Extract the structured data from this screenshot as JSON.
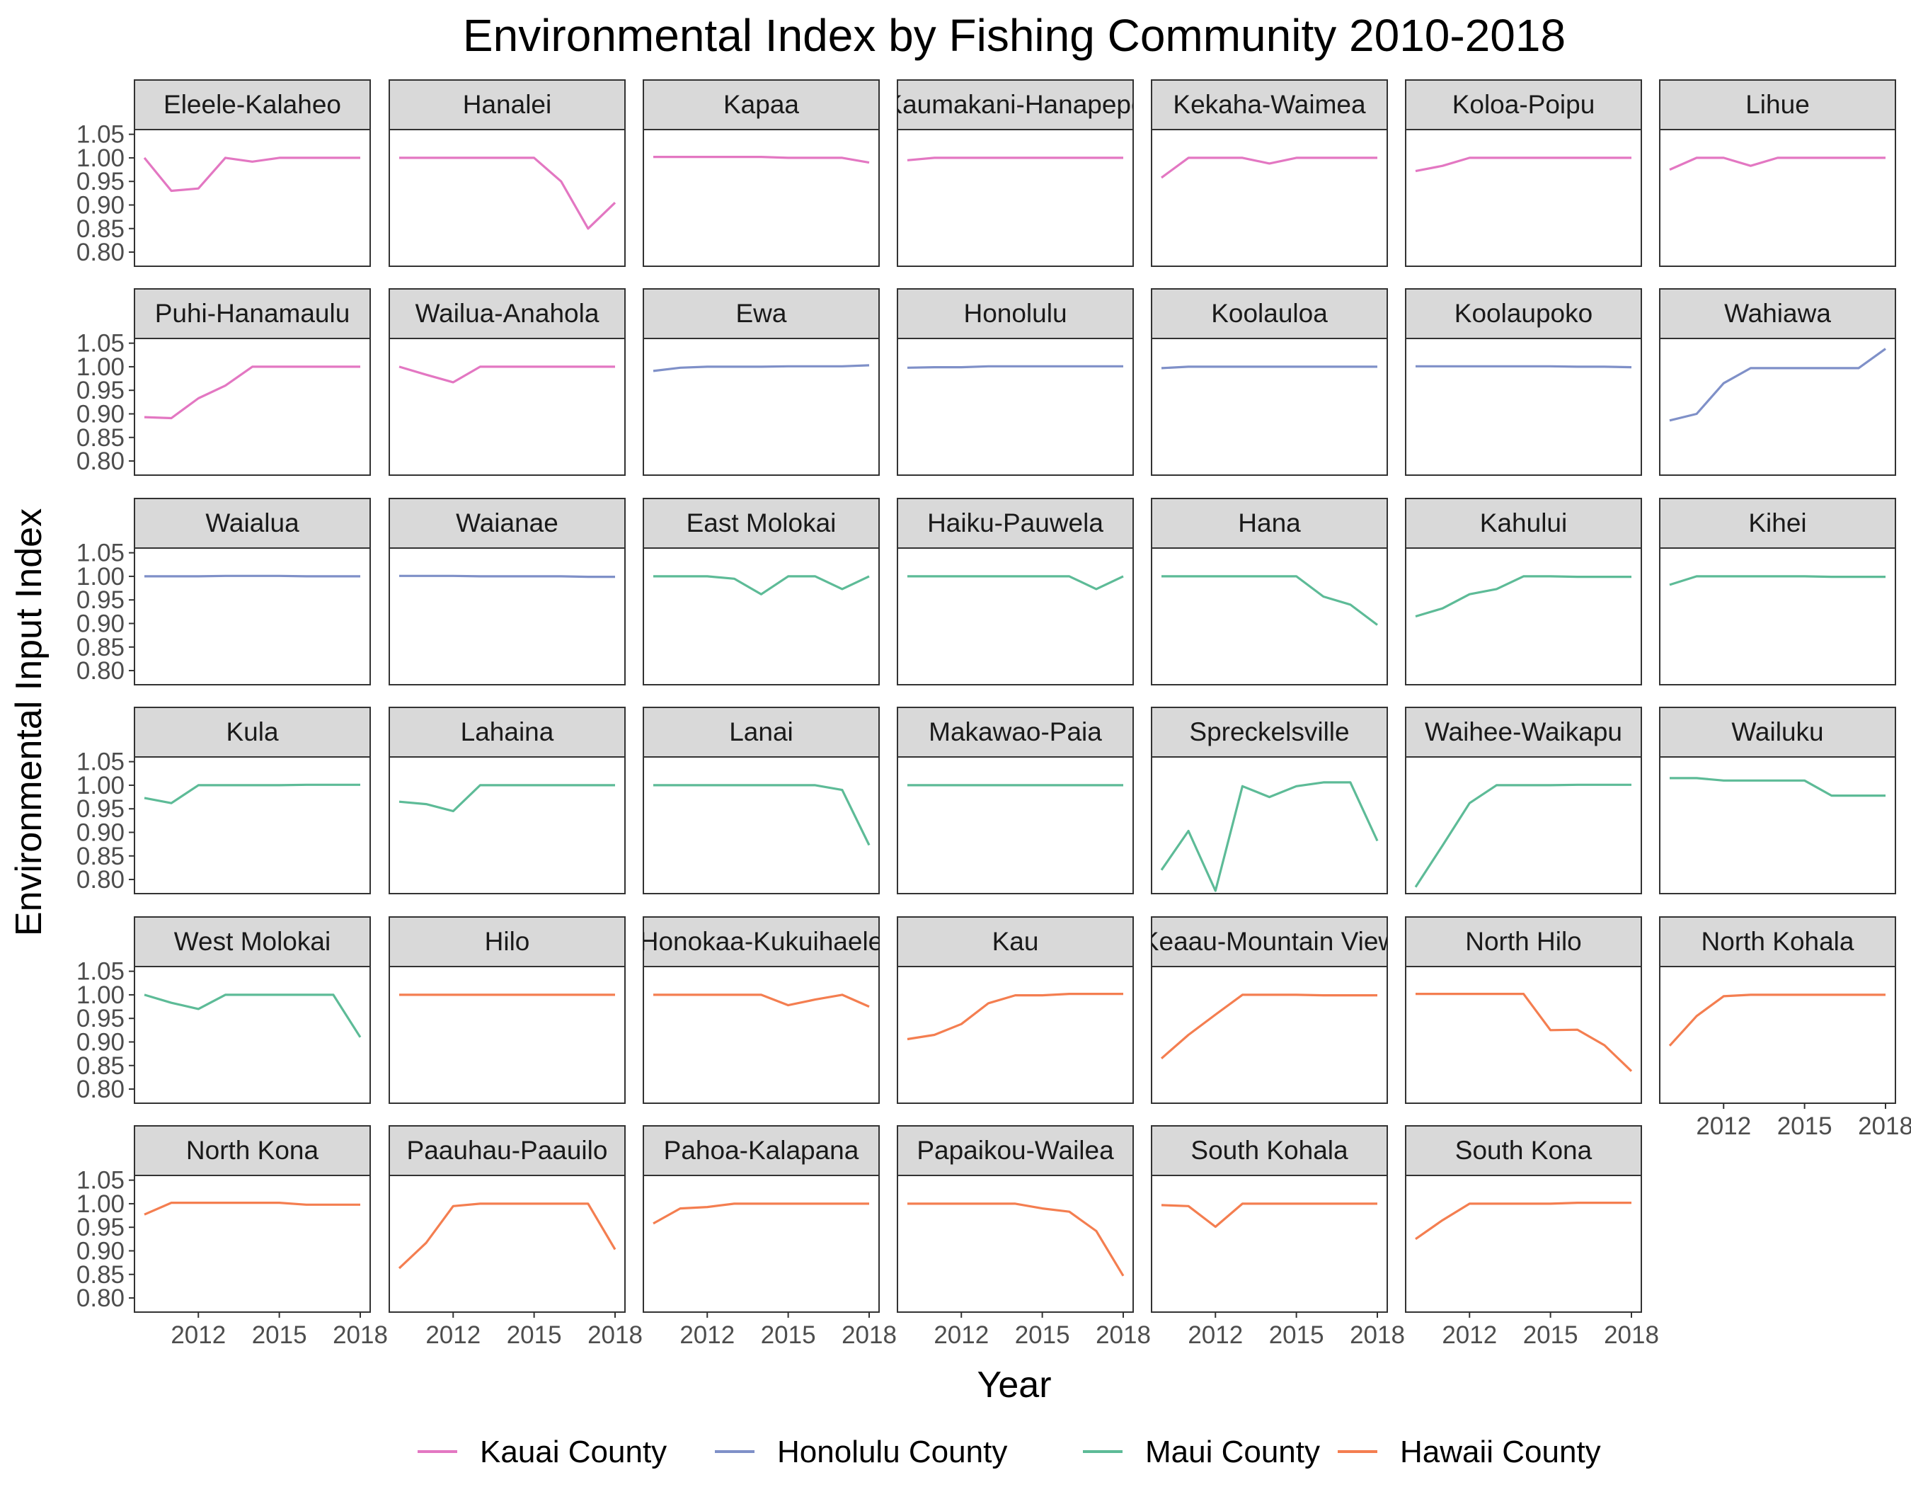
{
  "chart_data": {
    "type": "line",
    "title": "Environmental Index by Fishing Community 2010-2018",
    "xlabel": "Year",
    "ylabel": "Environmental Input Index",
    "xlim": [
      2010,
      2018
    ],
    "ylim": [
      0.77,
      1.06
    ],
    "y_ticks": [
      0.8,
      0.85,
      0.9,
      0.95,
      1.0,
      1.05
    ],
    "y_tick_labels": [
      "0.80",
      "0.85",
      "0.90",
      "0.95",
      "1.00",
      "1.05"
    ],
    "x_ticks": [
      2012,
      2015,
      2018
    ],
    "x_tick_labels": [
      "2012",
      "2015",
      "2018"
    ],
    "grid": false,
    "facet_layout": {
      "rows": 6,
      "cols": 7
    },
    "legend": {
      "position": "bottom",
      "entries": [
        {
          "name": "Kauai County",
          "color": "#E377C2"
        },
        {
          "name": "Honolulu County",
          "color": "#7F90C8"
        },
        {
          "name": "Maui County",
          "color": "#5DBB97"
        },
        {
          "name": "Hawaii County",
          "color": "#F47E50"
        }
      ]
    },
    "x": [
      2010,
      2011,
      2012,
      2013,
      2014,
      2015,
      2016,
      2017,
      2018
    ],
    "series": [
      {
        "name": "Eleele-Kalaheo",
        "county": "Kauai County",
        "values": [
          1.0,
          0.93,
          0.935,
          1.0,
          0.992,
          1.0,
          1.0,
          1.0,
          1.0
        ]
      },
      {
        "name": "Hanalei",
        "county": "Kauai County",
        "values": [
          1.0,
          1.0,
          1.0,
          1.0,
          1.0,
          1.0,
          0.95,
          0.85,
          0.905
        ]
      },
      {
        "name": "Kapaa",
        "county": "Kauai County",
        "values": [
          1.002,
          1.002,
          1.002,
          1.002,
          1.002,
          1.0,
          1.0,
          1.0,
          0.99
        ]
      },
      {
        "name": "Kaumakani-Hanapepe",
        "county": "Kauai County",
        "values": [
          0.995,
          1.0,
          1.0,
          1.0,
          1.0,
          1.0,
          1.0,
          1.0,
          1.0
        ]
      },
      {
        "name": "Kekaha-Waimea",
        "county": "Kauai County",
        "values": [
          0.958,
          1.0,
          1.0,
          1.0,
          0.988,
          1.0,
          1.0,
          1.0,
          1.0
        ]
      },
      {
        "name": "Koloa-Poipu",
        "county": "Kauai County",
        "values": [
          0.972,
          0.983,
          1.0,
          1.0,
          1.0,
          1.0,
          1.0,
          1.0,
          1.0
        ]
      },
      {
        "name": "Lihue",
        "county": "Kauai County",
        "values": [
          0.975,
          1.0,
          1.0,
          0.983,
          1.0,
          1.0,
          1.0,
          1.0,
          1.0
        ]
      },
      {
        "name": "Puhi-Hanamaulu",
        "county": "Kauai County",
        "values": [
          0.893,
          0.891,
          0.933,
          0.96,
          1.0,
          1.0,
          1.0,
          1.0,
          1.0
        ]
      },
      {
        "name": "Wailua-Anahola",
        "county": "Kauai County",
        "values": [
          1.0,
          0.983,
          0.967,
          1.0,
          1.0,
          1.0,
          1.0,
          1.0,
          1.0
        ]
      },
      {
        "name": "Ewa",
        "county": "Honolulu County",
        "values": [
          0.991,
          0.998,
          1.0,
          1.0,
          1.0,
          1.001,
          1.001,
          1.001,
          1.003
        ]
      },
      {
        "name": "Honolulu",
        "county": "Honolulu County",
        "values": [
          0.998,
          0.999,
          0.999,
          1.001,
          1.001,
          1.001,
          1.001,
          1.001,
          1.001
        ]
      },
      {
        "name": "Koolauloa",
        "county": "Honolulu County",
        "values": [
          0.997,
          1.0,
          1.0,
          1.0,
          1.0,
          1.0,
          1.0,
          1.0,
          1.0
        ]
      },
      {
        "name": "Koolaupoko",
        "county": "Honolulu County",
        "values": [
          1.001,
          1.001,
          1.001,
          1.001,
          1.001,
          1.001,
          1.0,
          1.0,
          0.999
        ]
      },
      {
        "name": "Wahiawa",
        "county": "Honolulu County",
        "values": [
          0.886,
          0.9,
          0.965,
          0.997,
          0.997,
          0.997,
          0.997,
          0.997,
          1.038
        ]
      },
      {
        "name": "Waialua",
        "county": "Honolulu County",
        "values": [
          1.0,
          1.0,
          1.0,
          1.001,
          1.001,
          1.001,
          1.0,
          1.0,
          1.0
        ]
      },
      {
        "name": "Waianae",
        "county": "Honolulu County",
        "values": [
          1.001,
          1.001,
          1.001,
          1.0,
          1.0,
          1.0,
          1.0,
          0.999,
          0.999
        ]
      },
      {
        "name": "East Molokai",
        "county": "Maui County",
        "values": [
          1.0,
          1.0,
          1.0,
          0.995,
          0.962,
          1.0,
          1.0,
          0.973,
          1.0
        ]
      },
      {
        "name": "Haiku-Pauwela",
        "county": "Maui County",
        "values": [
          1.0,
          1.0,
          1.0,
          1.0,
          1.0,
          1.0,
          1.0,
          0.973,
          1.0
        ]
      },
      {
        "name": "Hana",
        "county": "Maui County",
        "values": [
          1.0,
          1.0,
          1.0,
          1.0,
          1.0,
          1.0,
          0.957,
          0.94,
          0.897
        ]
      },
      {
        "name": "Kahului",
        "county": "Maui County",
        "values": [
          0.915,
          0.932,
          0.962,
          0.973,
          1.0,
          1.0,
          0.999,
          0.999,
          0.999
        ]
      },
      {
        "name": "Kihei",
        "county": "Maui County",
        "values": [
          0.982,
          1.0,
          1.0,
          1.0,
          1.0,
          1.0,
          0.999,
          0.999,
          0.999
        ]
      },
      {
        "name": "Kula",
        "county": "Maui County",
        "values": [
          0.973,
          0.962,
          1.0,
          1.0,
          1.0,
          1.0,
          1.001,
          1.001,
          1.001
        ]
      },
      {
        "name": "Lahaina",
        "county": "Maui County",
        "values": [
          0.965,
          0.96,
          0.945,
          1.0,
          1.0,
          1.0,
          1.0,
          1.0,
          1.0
        ]
      },
      {
        "name": "Lanai",
        "county": "Maui County",
        "values": [
          1.0,
          1.0,
          1.0,
          1.0,
          1.0,
          1.0,
          1.0,
          0.99,
          0.873
        ]
      },
      {
        "name": "Makawao-Paia",
        "county": "Maui County",
        "values": [
          1.0,
          1.0,
          1.0,
          1.0,
          1.0,
          1.0,
          1.0,
          1.0,
          1.0
        ]
      },
      {
        "name": "Spreckelsville",
        "county": "Maui County",
        "values": [
          0.82,
          0.903,
          0.776,
          0.998,
          0.975,
          0.998,
          1.006,
          1.006,
          0.882
        ]
      },
      {
        "name": "Waihee-Waikapu",
        "county": "Maui County",
        "values": [
          0.784,
          0.872,
          0.962,
          1.0,
          1.0,
          1.0,
          1.001,
          1.001,
          1.001
        ]
      },
      {
        "name": "Wailuku",
        "county": "Maui County",
        "values": [
          1.015,
          1.015,
          1.01,
          1.01,
          1.01,
          1.01,
          0.978,
          0.978,
          0.978
        ]
      },
      {
        "name": "West Molokai",
        "county": "Maui County",
        "values": [
          1.0,
          0.983,
          0.97,
          1.0,
          1.0,
          1.0,
          1.0,
          1.0,
          0.91
        ]
      },
      {
        "name": "Hilo",
        "county": "Hawaii County",
        "values": [
          1.0,
          1.0,
          1.0,
          1.0,
          1.0,
          1.0,
          1.0,
          1.0,
          1.0
        ]
      },
      {
        "name": "Honokaa-Kukuihaele",
        "county": "Hawaii County",
        "values": [
          1.0,
          1.0,
          1.0,
          1.0,
          1.0,
          0.978,
          0.99,
          1.0,
          0.975
        ]
      },
      {
        "name": "Kau",
        "county": "Hawaii County",
        "values": [
          0.906,
          0.915,
          0.938,
          0.982,
          0.999,
          0.999,
          1.002,
          1.002,
          1.002
        ]
      },
      {
        "name": "Keaau-Mountain View",
        "county": "Hawaii County",
        "values": [
          0.865,
          0.915,
          0.958,
          1.0,
          1.0,
          1.0,
          0.999,
          0.999,
          0.999
        ]
      },
      {
        "name": "North Hilo",
        "county": "Hawaii County",
        "values": [
          1.002,
          1.002,
          1.002,
          1.002,
          1.002,
          0.925,
          0.926,
          0.893,
          0.838
        ]
      },
      {
        "name": "North Kohala",
        "county": "Hawaii County",
        "values": [
          0.892,
          0.955,
          0.997,
          1.0,
          1.0,
          1.0,
          1.0,
          1.0,
          1.0
        ]
      },
      {
        "name": "North Kona",
        "county": "Hawaii County",
        "values": [
          0.977,
          1.002,
          1.002,
          1.002,
          1.002,
          1.002,
          0.998,
          0.998,
          0.998
        ]
      },
      {
        "name": "Paauhau-Paauilo",
        "county": "Hawaii County",
        "values": [
          0.863,
          0.917,
          0.995,
          1.0,
          1.0,
          1.0,
          1.0,
          1.0,
          0.903
        ]
      },
      {
        "name": "Pahoa-Kalapana",
        "county": "Hawaii County",
        "values": [
          0.958,
          0.99,
          0.993,
          1.0,
          1.0,
          1.0,
          1.0,
          1.0,
          1.0
        ]
      },
      {
        "name": "Papaikou-Wailea",
        "county": "Hawaii County",
        "values": [
          1.0,
          1.0,
          1.0,
          1.0,
          1.0,
          0.99,
          0.983,
          0.942,
          0.847
        ]
      },
      {
        "name": "South Kohala",
        "county": "Hawaii County",
        "values": [
          0.997,
          0.995,
          0.951,
          1.0,
          1.0,
          1.0,
          1.0,
          1.0,
          1.0
        ]
      },
      {
        "name": "South Kona",
        "county": "Hawaii County",
        "values": [
          0.925,
          0.965,
          1.0,
          1.0,
          1.0,
          1.0,
          1.002,
          1.002,
          1.002
        ]
      }
    ]
  }
}
